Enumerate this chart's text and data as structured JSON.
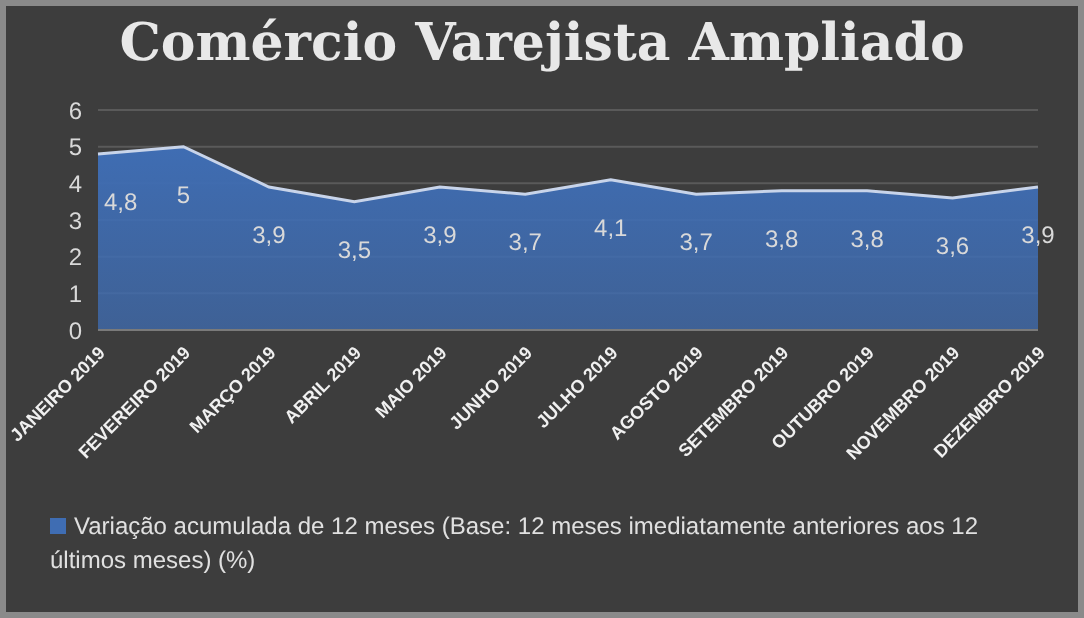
{
  "chart_data": {
    "type": "area",
    "title": "Comércio Varejista Ampliado",
    "categories": [
      "JANEIRO 2019",
      "FEVEREIRO 2019",
      "MARÇO 2019",
      "ABRIL 2019",
      "MAIO 2019",
      "JUNHO 2019",
      "JULHO 2019",
      "AGOSTO 2019",
      "SETEMBRO 2019",
      "OUTUBRO 2019",
      "NOVEMBRO 2019",
      "DEZEMBRO 2019"
    ],
    "series": [
      {
        "name": "Variação acumulada de 12 meses (Base: 12 meses imediatamente anteriores aos 12 últimos meses) (%)",
        "color": "#3f6db3",
        "values": [
          4.8,
          5,
          3.9,
          3.5,
          3.9,
          3.7,
          4.1,
          3.7,
          3.8,
          3.8,
          3.6,
          3.9
        ],
        "value_labels": [
          "4,8",
          "5",
          "3,9",
          "3,5",
          "3,9",
          "3,7",
          "4,1",
          "3,7",
          "3,8",
          "3,8",
          "3,6",
          "3,9"
        ]
      }
    ],
    "ylim": [
      0,
      6
    ],
    "yticks": [
      0,
      1,
      2,
      3,
      4,
      5,
      6
    ],
    "grid": "y",
    "legend": "bottom"
  }
}
